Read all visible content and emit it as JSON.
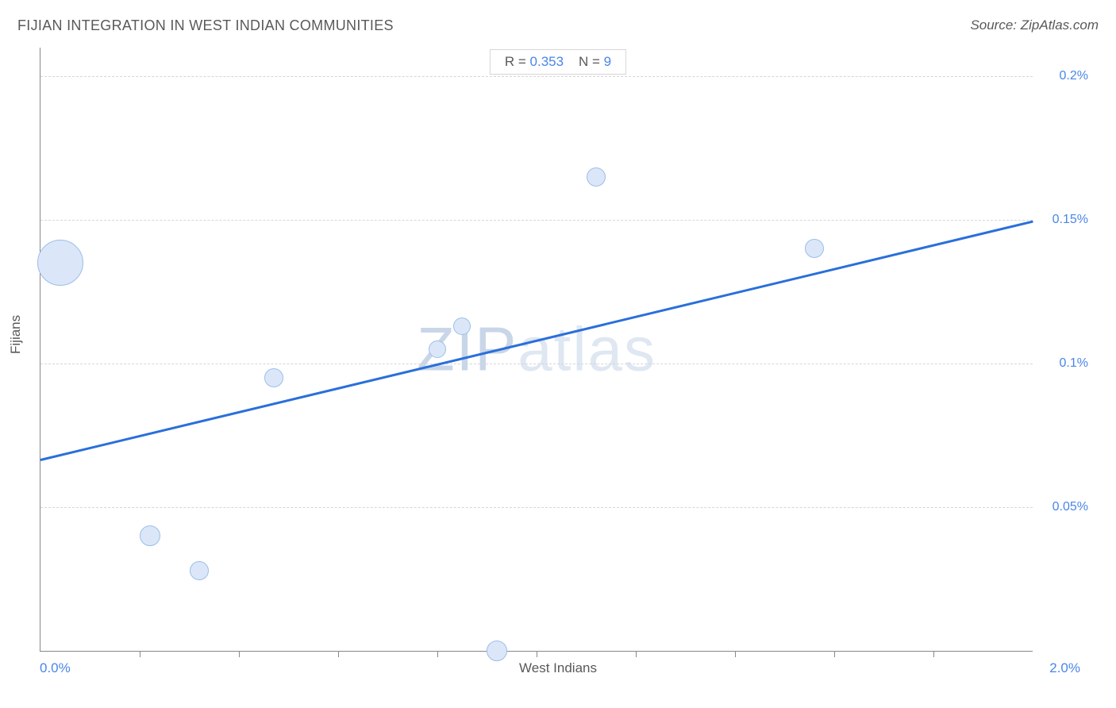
{
  "title": "FIJIAN INTEGRATION IN WEST INDIAN COMMUNITIES",
  "source": "Source: ZipAtlas.com",
  "watermark": "ZIPatlas",
  "chart": {
    "type": "scatter",
    "x_axis": {
      "label": "West Indians",
      "min": 0.0,
      "max": 2.0,
      "min_label": "0.0%",
      "max_label": "2.0%",
      "tick_positions": [
        0.2,
        0.4,
        0.6,
        0.8,
        1.0,
        1.2,
        1.4,
        1.6,
        1.8
      ]
    },
    "y_axis": {
      "label": "Fijians",
      "min": 0.0,
      "max": 0.21,
      "grid": [
        {
          "v": 0.05,
          "label": "0.05%"
        },
        {
          "v": 0.1,
          "label": "0.1%"
        },
        {
          "v": 0.15,
          "label": "0.15%"
        },
        {
          "v": 0.2,
          "label": "0.2%"
        }
      ]
    },
    "points": [
      {
        "x": 0.04,
        "y": 0.135,
        "r": 28
      },
      {
        "x": 0.22,
        "y": 0.04,
        "r": 12
      },
      {
        "x": 0.32,
        "y": 0.028,
        "r": 11
      },
      {
        "x": 0.47,
        "y": 0.095,
        "r": 11
      },
      {
        "x": 0.8,
        "y": 0.105,
        "r": 10
      },
      {
        "x": 0.85,
        "y": 0.113,
        "r": 10
      },
      {
        "x": 0.92,
        "y": 0.0,
        "r": 12
      },
      {
        "x": 1.12,
        "y": 0.165,
        "r": 11
      },
      {
        "x": 1.56,
        "y": 0.14,
        "r": 11
      }
    ],
    "trend_line": {
      "x1": 0.0,
      "y1": 0.067,
      "x2": 2.0,
      "y2": 0.15,
      "color": "#2a6fdb",
      "width": 3
    },
    "point_fill": "#dbe7f8",
    "point_stroke": "#9bbdeb",
    "background": "#ffffff",
    "grid_color": "#d6d6d6",
    "axis_color": "#888888",
    "label_color": "#4a86e8",
    "title_color": "#595959"
  },
  "stats": {
    "r_label": "R =",
    "r_value": "0.353",
    "n_label": "N =",
    "n_value": "9"
  }
}
